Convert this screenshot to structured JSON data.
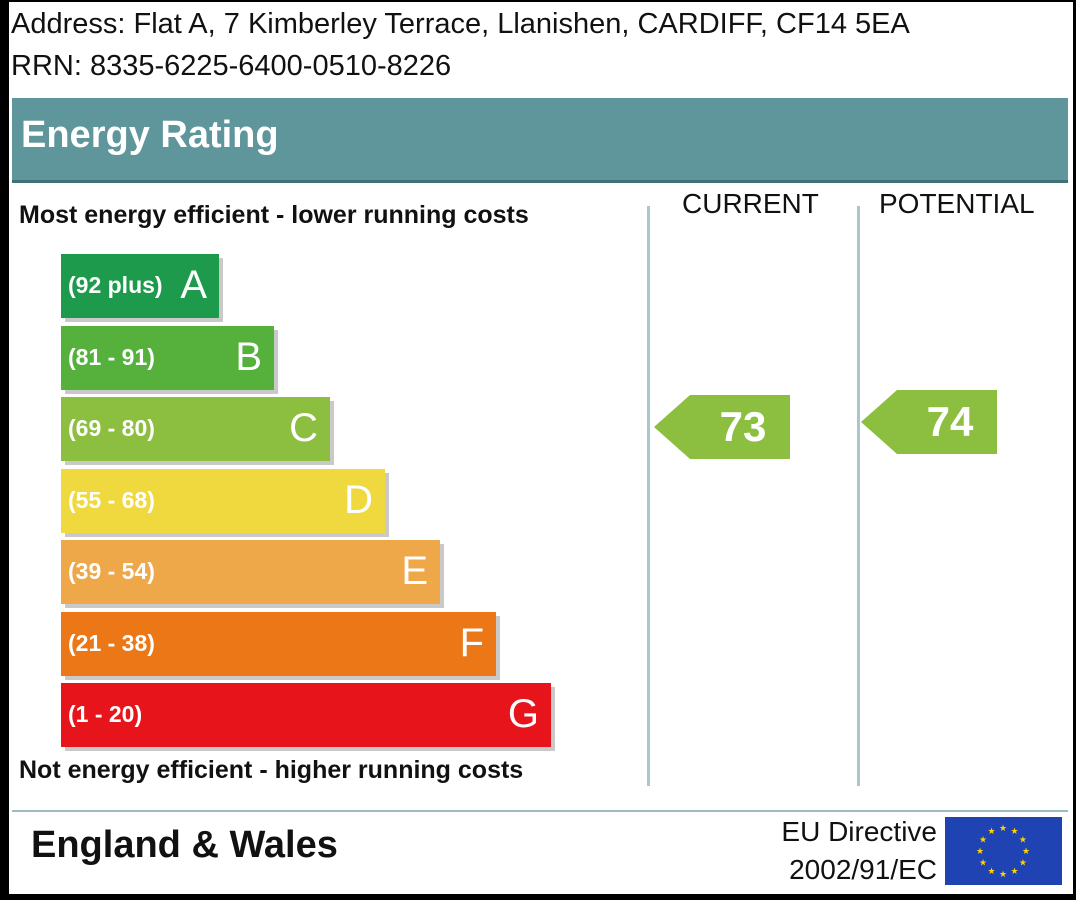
{
  "header": {
    "address": "Address: Flat A, 7 Kimberley Terrace, Llanishen, CARDIFF, CF14 5EA",
    "rrn": "RRN: 8335-6225-6400-0510-8226"
  },
  "chart_data": {
    "type": "bar",
    "title": "Energy Rating",
    "top_note": "Most energy efficient - lower running costs",
    "bottom_note": "Not energy efficient - higher running costs",
    "columns": [
      "CURRENT",
      "POTENTIAL"
    ],
    "bands": [
      {
        "letter": "A",
        "range": "(92 plus)",
        "min": 92,
        "max": 100,
        "color": "#1e9a4c"
      },
      {
        "letter": "B",
        "range": "(81 - 91)",
        "min": 81,
        "max": 91,
        "color": "#55b13c"
      },
      {
        "letter": "C",
        "range": "(69 - 80)",
        "min": 69,
        "max": 80,
        "color": "#8cbf3f"
      },
      {
        "letter": "D",
        "range": "(55 - 68)",
        "min": 55,
        "max": 68,
        "color": "#f0d93f"
      },
      {
        "letter": "E",
        "range": "(39 - 54)",
        "min": 39,
        "max": 54,
        "color": "#eea84a"
      },
      {
        "letter": "F",
        "range": "(21 - 38)",
        "min": 21,
        "max": 38,
        "color": "#ec7716"
      },
      {
        "letter": "G",
        "range": "(1 - 20)",
        "min": 1,
        "max": 20,
        "color": "#e8141c"
      }
    ],
    "current": {
      "value": "73",
      "band": "C",
      "color": "#8cbf3f"
    },
    "potential": {
      "value": "74",
      "band": "C",
      "color": "#8cbf3f"
    }
  },
  "footer": {
    "region": "England & Wales",
    "directive_line1": "EU Directive",
    "directive_line2": "2002/91/EC",
    "flag_icon": "eu-flag-icon"
  }
}
